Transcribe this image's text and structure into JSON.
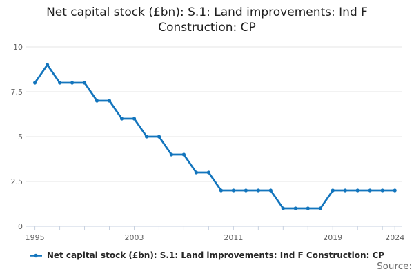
{
  "title": {
    "full": "Net capital stock (£bn): S.1: Land improvements: Ind F Construction: CP",
    "line1": "Net capital stock (£bn): S.1: Land improvements: Ind F",
    "line2": "Construction: CP"
  },
  "legend": {
    "label": "Net capital stock (£bn): S.1: Land improvements: Ind F Construction: CP"
  },
  "source_label": "Source:",
  "colors": {
    "line": "#1375bd",
    "grid": "#e6e6e6",
    "axis": "#c7d1e0",
    "tick_label": "#636363",
    "title_text": "#1f1f1f",
    "legend_text": "#262626",
    "source_text": "#6e6e6e",
    "background": "#ffffff"
  },
  "chart_data": {
    "type": "line",
    "title": "Net capital stock (£bn): S.1: Land improvements: Ind F Construction: CP",
    "x": [
      1995,
      1996,
      1997,
      1998,
      1999,
      2000,
      2001,
      2002,
      2003,
      2004,
      2005,
      2006,
      2007,
      2008,
      2009,
      2010,
      2011,
      2012,
      2013,
      2014,
      2015,
      2016,
      2017,
      2018,
      2019,
      2020,
      2021,
      2022,
      2023,
      2024
    ],
    "series": [
      {
        "name": "Net capital stock (£bn): S.1: Land improvements: Ind F Construction: CP",
        "values": [
          8,
          9,
          8,
          8,
          8,
          7,
          7,
          6,
          6,
          5,
          5,
          4,
          4,
          3,
          3,
          2,
          2,
          2,
          2,
          2,
          1,
          1,
          1,
          1,
          2,
          2,
          2,
          2,
          2,
          2
        ]
      }
    ],
    "xlabel": "",
    "ylabel": "",
    "ylim": [
      0,
      10
    ],
    "xlim": [
      1994.3,
      2024.6
    ],
    "yticks": [
      0,
      2.5,
      5,
      7.5,
      10
    ],
    "xtick_labels": [
      1995,
      2003,
      2011,
      2019,
      2024
    ],
    "xticks_minor": [
      1995,
      1997,
      1999,
      2001,
      2003,
      2005,
      2007,
      2009,
      2011,
      2013,
      2015,
      2017,
      2019,
      2021,
      2023,
      2024
    ],
    "grid": "horizontal-only",
    "legend_position": "bottom-center",
    "marker": "circle"
  }
}
